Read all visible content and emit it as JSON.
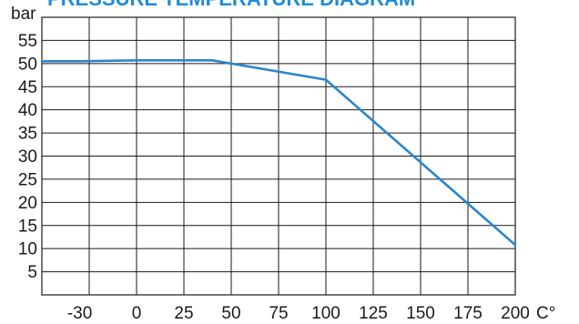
{
  "colors": {
    "title": "#1f8bd6",
    "series": "#2a86cc",
    "grid": "#1a1a1a",
    "background": "#ffffff"
  },
  "chart_data": {
    "type": "line",
    "title": "PRESSURE TEMPERATURE DIAGRAM",
    "xlabel": "",
    "ylabel": "",
    "x_unit": "C°",
    "y_unit": "bar",
    "xlim": [
      -50,
      200
    ],
    "ylim": [
      0,
      60
    ],
    "x_ticks": [
      -30,
      0,
      25,
      50,
      75,
      100,
      125,
      150,
      175,
      200
    ],
    "x_tick_labels": [
      "-30",
      "0",
      "25",
      "50",
      "75",
      "100",
      "125",
      "150",
      "175",
      "200"
    ],
    "y_ticks": [
      5,
      10,
      15,
      20,
      25,
      30,
      35,
      40,
      45,
      50,
      55
    ],
    "y_tick_labels": [
      "5",
      "10",
      "15",
      "20",
      "25",
      "30",
      "35",
      "40",
      "45",
      "50",
      "55"
    ],
    "x_grid": [
      -25,
      0,
      25,
      50,
      75,
      100,
      125,
      150,
      175
    ],
    "y_grid": [
      5,
      10,
      15,
      20,
      25,
      30,
      35,
      40,
      45,
      50,
      55
    ],
    "grid": true,
    "series": [
      {
        "x": [
          -50,
          -30,
          0,
          25,
          40,
          100,
          200
        ],
        "y": [
          50.5,
          50.5,
          50.7,
          50.7,
          50.7,
          46.5,
          10.8
        ]
      }
    ]
  }
}
